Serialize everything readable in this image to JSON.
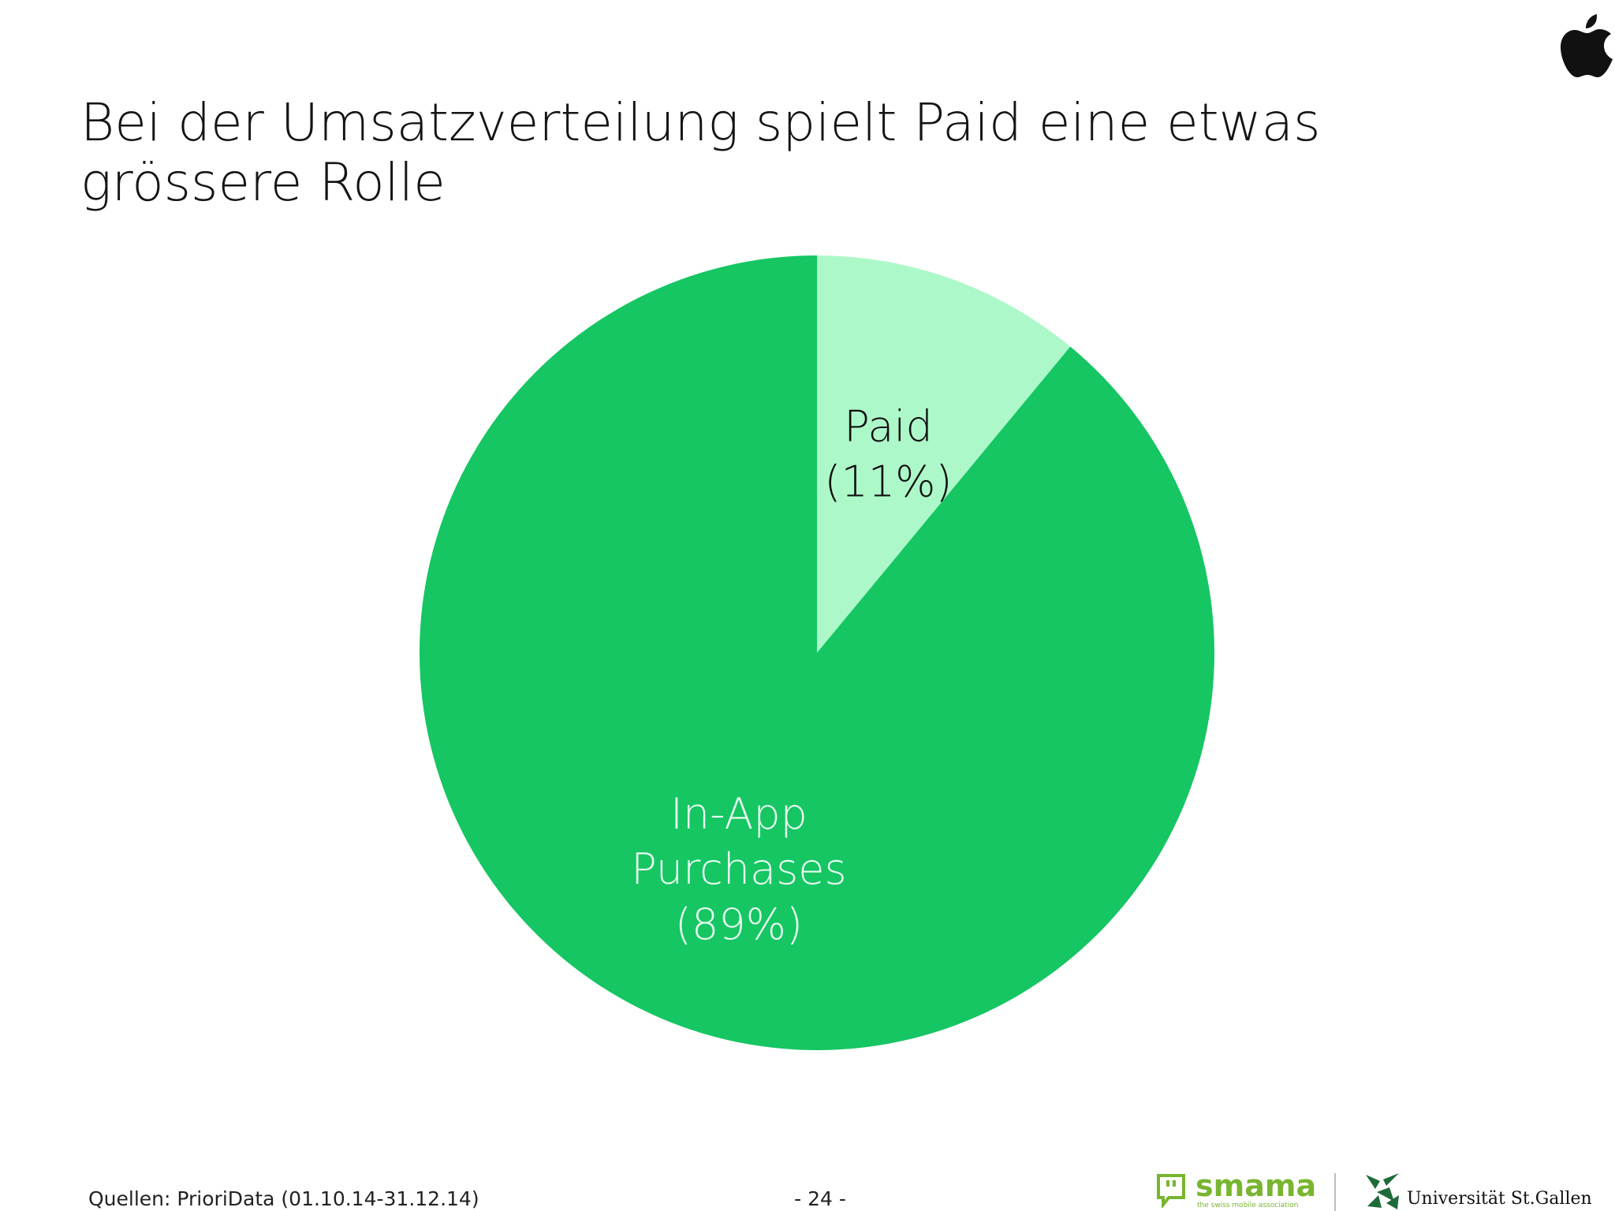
{
  "slide": {
    "title": "Bei der Umsatzverteilung spielt Paid eine etwas grössere Rolle",
    "source": "Quellen: PrioriData (01.10.14-31.12.14)",
    "page_number": "- 24 -"
  },
  "logos": {
    "top_right": "apple-icon",
    "smama_name": "smama",
    "smama_tagline": "the swiss mobile association",
    "university_name": "Universität St.Gallen"
  },
  "colors": {
    "paid": "#adf8c9",
    "in_app": "#15c663",
    "label_dark": "#111111",
    "label_light": "#e8fbef"
  },
  "chart_data": {
    "type": "pie",
    "title": "",
    "start": "12 o'clock",
    "direction": "clockwise",
    "slices": [
      {
        "label_lines": [
          "Paid",
          "(11%)"
        ],
        "value": 11,
        "color": "#adf8c9"
      },
      {
        "label_lines": [
          "In-App",
          "Purchases",
          "(89%)"
        ],
        "value": 89,
        "color": "#15c663"
      }
    ]
  }
}
